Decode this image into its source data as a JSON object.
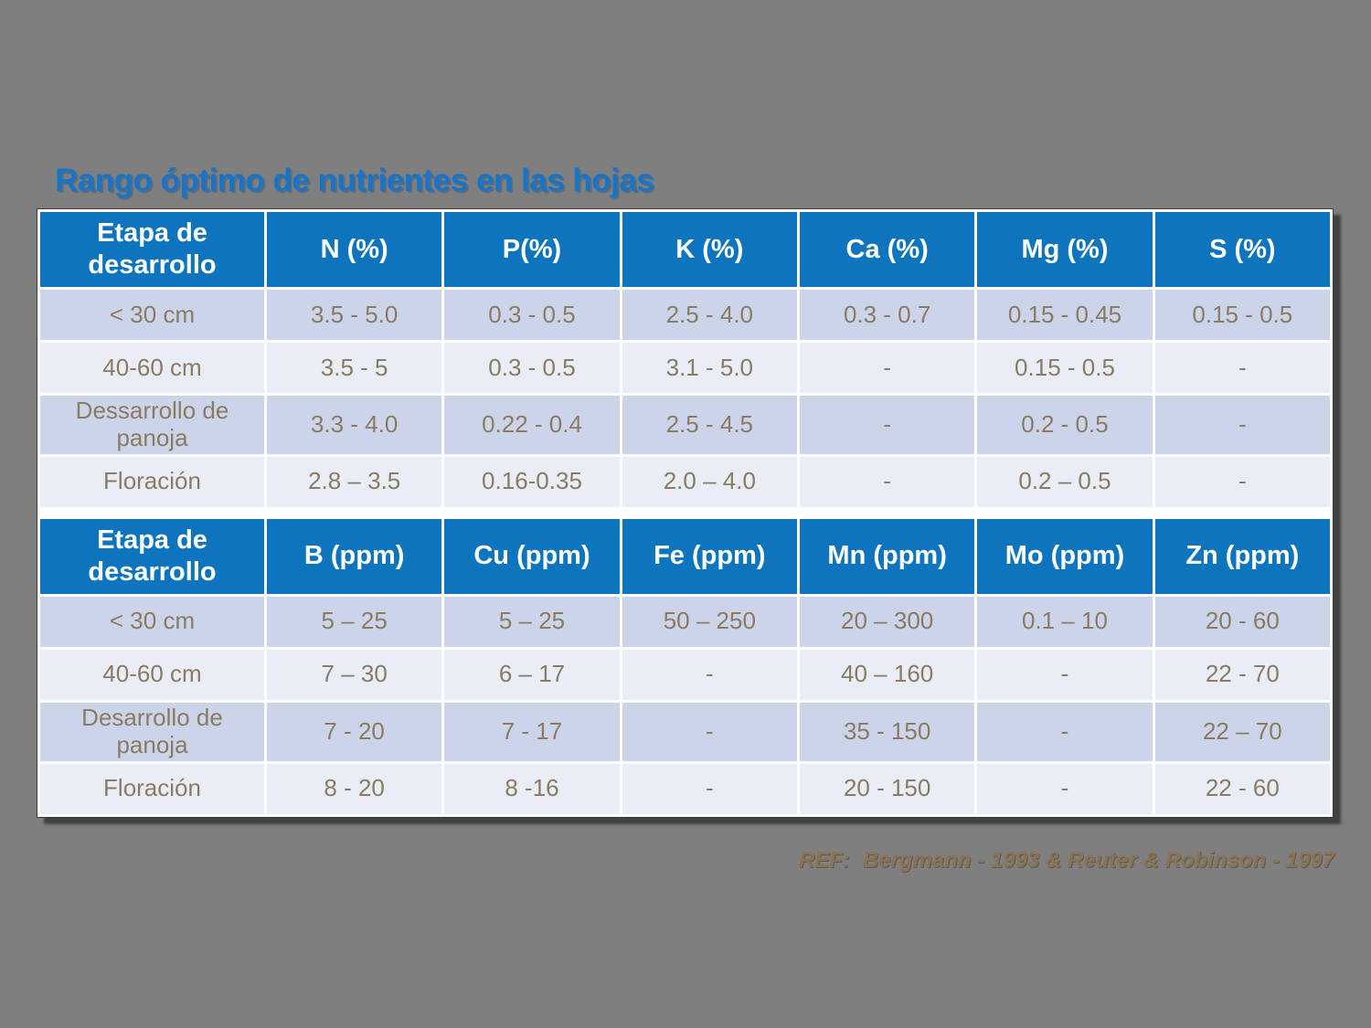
{
  "title": {
    "text": "Rango óptimo de nutrientes en las hojas"
  },
  "tables": [
    {
      "name": "macronutrients-table",
      "columns": [
        "Etapa de desarrollo",
        "N (%)",
        "P(%)",
        "K (%)",
        "Ca (%)",
        "Mg (%)",
        "S (%)"
      ],
      "rows": [
        [
          "< 30 cm",
          "3.5 - 5.0",
          "0.3 - 0.5",
          "2.5 - 4.0",
          "0.3 - 0.7",
          "0.15 - 0.45",
          "0.15 - 0.5"
        ],
        [
          "40-60 cm",
          "3.5 - 5",
          "0.3 - 0.5",
          "3.1 - 5.0",
          "-",
          "0.15 - 0.5",
          "-"
        ],
        [
          "Dessarrollo de panoja",
          "3.3 - 4.0",
          "0.22 - 0.4",
          "2.5 - 4.5",
          "-",
          "0.2 - 0.5",
          "-"
        ],
        [
          "Floración",
          "2.8 – 3.5",
          "0.16-0.35",
          "2.0 – 4.0",
          "-",
          "0.2 – 0.5",
          "-"
        ]
      ]
    },
    {
      "name": "micronutrients-table",
      "columns": [
        "Etapa de desarrollo",
        "B (ppm)",
        "Cu (ppm)",
        "Fe (ppm)",
        "Mn (ppm)",
        "Mo (ppm)",
        "Zn (ppm)"
      ],
      "rows": [
        [
          "< 30 cm",
          "5 – 25",
          "5 – 25",
          "50 – 250",
          "20 – 300",
          "0.1 – 10",
          "20 - 60"
        ],
        [
          "40-60 cm",
          "7 – 30",
          "6 – 17",
          "-",
          "40 – 160",
          "-",
          "22 - 70"
        ],
        [
          "Desarrollo de panoja",
          "7 - 20",
          "7 - 17",
          "-",
          "35 - 150",
          "-",
          "22 – 70"
        ],
        [
          "Floración",
          "8 - 20",
          "8 -16",
          "-",
          "20 - 150",
          "-",
          "22 - 60"
        ]
      ]
    }
  ],
  "reference": {
    "label": "REF:",
    "text": "Bergmann - 1993 & Reuter & Robinson - 1997"
  },
  "colors": {
    "page_background": "#7f7f7f",
    "title_blue": "#1a74c6",
    "header_background": "#0d74be",
    "header_text": "#ffffff",
    "row_band_dark": "#cbd4e8",
    "row_band_light": "#e9edf5",
    "cell_text": "#8b7b64",
    "reference_text": "#8a7355",
    "grid_border": "#ffffff"
  }
}
